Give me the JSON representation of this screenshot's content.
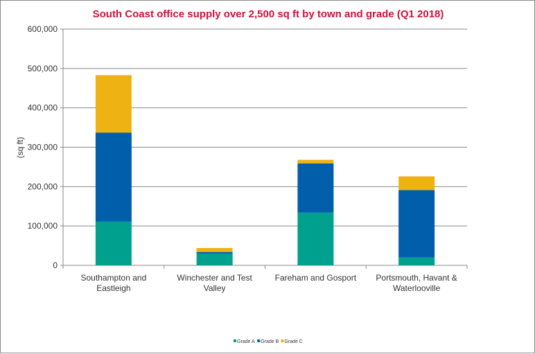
{
  "chart_data": {
    "type": "bar",
    "stacked": true,
    "title": "South Coast office supply over 2,500 sq ft by town and grade (Q1 2018)",
    "ylabel": "(sq ft)",
    "xlabel": "",
    "ylim": [
      0,
      600000
    ],
    "yticks": [
      "0",
      "100,000",
      "200,000",
      "300,000",
      "400,000",
      "500,000",
      "600,000"
    ],
    "grid": true,
    "legend": "bottom",
    "categories": [
      [
        "Southampton and",
        "Eastleigh"
      ],
      [
        "Winchester and Test",
        "Valley"
      ],
      [
        "Fareham and Gosport"
      ],
      [
        "Portsmouth, Havant &",
        "Waterlooville"
      ]
    ],
    "series": [
      {
        "name": "Grade A",
        "color": "#00A08E",
        "values": [
          111000,
          30000,
          134000,
          20000
        ]
      },
      {
        "name": "Grade B",
        "color": "#005EAB",
        "values": [
          226000,
          4000,
          125000,
          171000
        ]
      },
      {
        "name": "Grade C",
        "color": "#EEB312",
        "values": [
          146000,
          10000,
          9000,
          35000
        ]
      }
    ]
  }
}
